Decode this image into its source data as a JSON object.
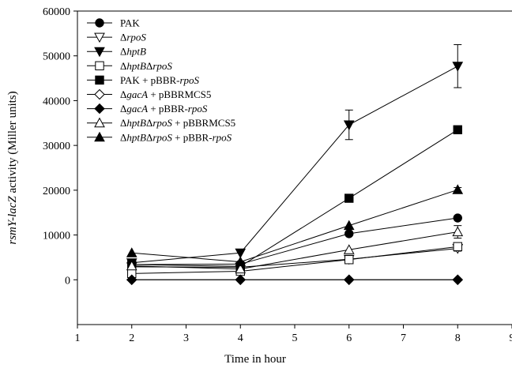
{
  "chart_data": {
    "type": "line",
    "title": "",
    "xlabel": "Time in hour",
    "ylabel": {
      "parts": [
        {
          "text": "rsmY-lacZ",
          "italic": true
        },
        {
          "text": " activity (Miller units)",
          "italic": false
        }
      ]
    },
    "xlim": [
      1,
      9
    ],
    "ylim": [
      -10000,
      60000
    ],
    "x_ticks": [
      1,
      2,
      3,
      4,
      5,
      6,
      7,
      8,
      9
    ],
    "y_ticks": [
      0,
      10000,
      20000,
      30000,
      40000,
      50000,
      60000
    ],
    "x_tick_labels": [
      "1",
      "2",
      "3",
      "4",
      "5",
      "6",
      "7",
      "8",
      "9"
    ],
    "y_tick_labels": [
      "0",
      "10000",
      "20000",
      "30000",
      "40000",
      "50000",
      "60000"
    ],
    "grid": false,
    "legend_position": "top-left",
    "x": [
      2,
      4,
      6,
      8
    ],
    "series": [
      {
        "name": "PAK",
        "name_parts": [
          {
            "text": "PAK",
            "italic": false
          }
        ],
        "marker": "circle",
        "fill": "black",
        "values": [
          3400,
          3500,
          10300,
          13800
        ],
        "errors": [
          0,
          0,
          0,
          0
        ]
      },
      {
        "name": "ΔrpoS",
        "name_parts": [
          {
            "text": "Δ",
            "italic": false
          },
          {
            "text": "rpoS",
            "italic": true
          }
        ],
        "marker": "triangle-down",
        "fill": "white",
        "values": [
          2900,
          2800,
          4600,
          7000
        ],
        "errors": [
          0,
          0,
          0,
          600
        ]
      },
      {
        "name": "ΔhptB",
        "name_parts": [
          {
            "text": "Δ",
            "italic": false
          },
          {
            "text": "hptB",
            "italic": true
          }
        ],
        "marker": "triangle-down",
        "fill": "black",
        "values": [
          3800,
          6000,
          34600,
          47700
        ],
        "errors": [
          0,
          0,
          3300,
          4800
        ]
      },
      {
        "name": "ΔhptBΔrpoS",
        "name_parts": [
          {
            "text": "Δ",
            "italic": false
          },
          {
            "text": "hptB",
            "italic": true
          },
          {
            "text": "Δ",
            "italic": false
          },
          {
            "text": "rpoS",
            "italic": true
          }
        ],
        "marker": "square",
        "fill": "white",
        "values": [
          1400,
          1900,
          4500,
          7400
        ],
        "errors": [
          0,
          0,
          0,
          0
        ]
      },
      {
        "name": "PAK + pBBR-rpoS",
        "name_parts": [
          {
            "text": "PAK + pBBR-",
            "italic": false
          },
          {
            "text": "rpoS",
            "italic": true
          }
        ],
        "marker": "square",
        "fill": "black",
        "values": [
          3400,
          3000,
          18200,
          33500
        ],
        "errors": [
          0,
          0,
          0,
          700
        ]
      },
      {
        "name": "ΔgacA + pBBRMCS5",
        "name_parts": [
          {
            "text": "Δ",
            "italic": false
          },
          {
            "text": "gacA",
            "italic": true
          },
          {
            "text": " + pBBRMCS5",
            "italic": false
          }
        ],
        "marker": "diamond",
        "fill": "white",
        "values": [
          0,
          0,
          0,
          0
        ],
        "errors": [
          0,
          0,
          0,
          0
        ]
      },
      {
        "name": "ΔgacA + pBBR-rpoS",
        "name_parts": [
          {
            "text": "Δ",
            "italic": false
          },
          {
            "text": "gacA",
            "italic": true
          },
          {
            "text": " + pBBR-",
            "italic": false
          },
          {
            "text": "rpoS",
            "italic": true
          }
        ],
        "marker": "diamond",
        "fill": "black",
        "values": [
          0,
          0,
          0,
          0
        ],
        "errors": [
          0,
          0,
          0,
          0
        ]
      },
      {
        "name": "ΔhptBΔrpoS + pBBRMCS5",
        "name_parts": [
          {
            "text": "Δ",
            "italic": false
          },
          {
            "text": "hptB",
            "italic": true
          },
          {
            "text": "Δ",
            "italic": false
          },
          {
            "text": "rpoS",
            "italic": true
          },
          {
            "text": " + pBBRMCS5",
            "italic": false
          }
        ],
        "marker": "triangle-up",
        "fill": "white",
        "values": [
          3100,
          2400,
          6700,
          10700
        ],
        "errors": [
          0,
          0,
          0,
          1400
        ]
      },
      {
        "name": "ΔhptBΔrpoS + pBBR-rpoS",
        "name_parts": [
          {
            "text": "Δ",
            "italic": false
          },
          {
            "text": "hptB",
            "italic": true
          },
          {
            "text": "Δ",
            "italic": false
          },
          {
            "text": "rpoS",
            "italic": true
          },
          {
            "text": " + pBBR-",
            "italic": false
          },
          {
            "text": "rpoS",
            "italic": true
          }
        ],
        "marker": "triangle-up",
        "fill": "black",
        "values": [
          6000,
          4000,
          12100,
          20100
        ],
        "errors": [
          0,
          0,
          0,
          500
        ]
      }
    ]
  }
}
